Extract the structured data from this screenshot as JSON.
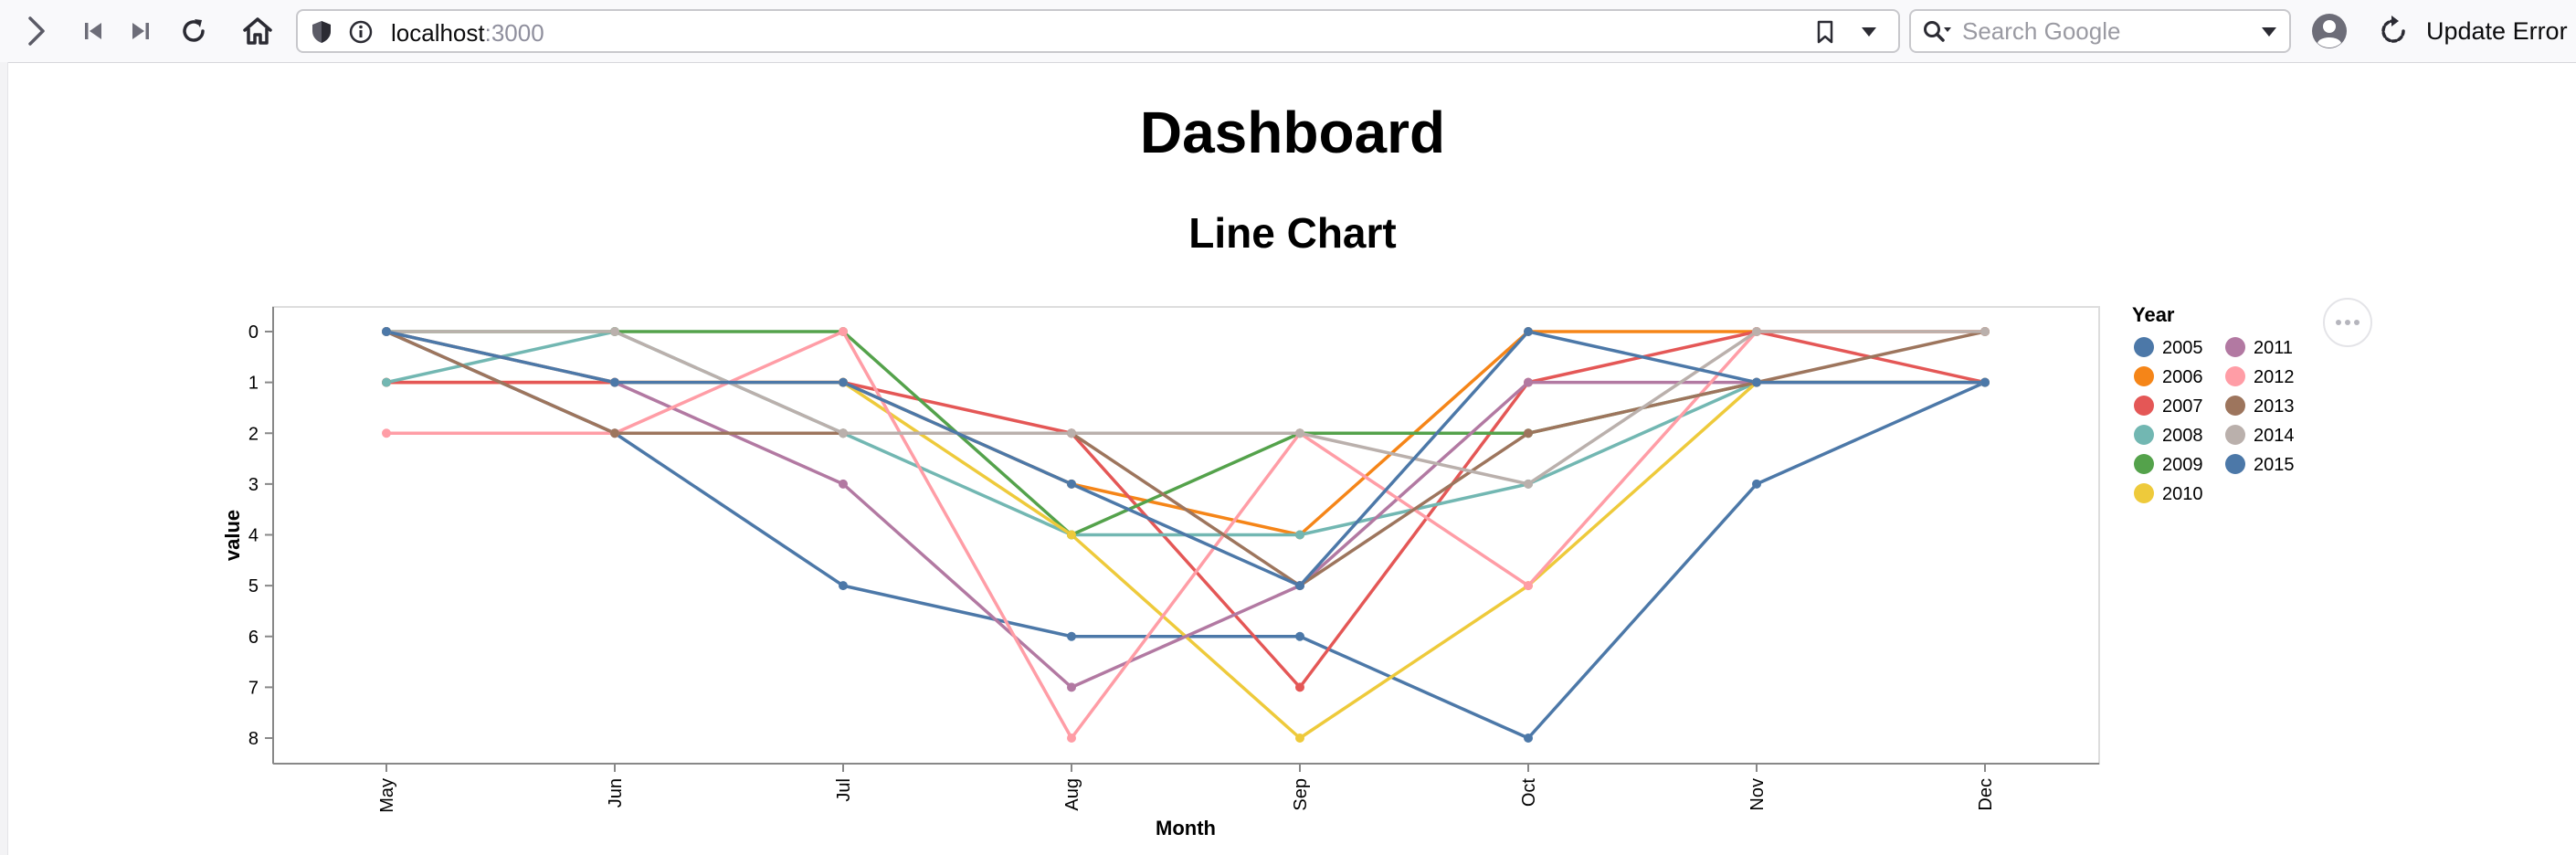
{
  "browser": {
    "url_host": "localhost",
    "url_port": ":3000",
    "search_placeholder": "Search Google",
    "update_label": "Update Error"
  },
  "page": {
    "title": "Dashboard",
    "chart_heading": "Line Chart"
  },
  "chart_data": {
    "type": "line",
    "title": "Line Chart",
    "xlabel": "Month",
    "ylabel": "value",
    "categories": [
      "May",
      "Jun",
      "Jul",
      "Aug",
      "Sep",
      "Oct",
      "Nov",
      "Dec"
    ],
    "ylim": [
      0,
      8
    ],
    "y_reversed": true,
    "yticks": [
      0,
      1,
      2,
      3,
      4,
      5,
      6,
      7,
      8
    ],
    "grid": false,
    "legend": {
      "title": "Year",
      "placement": "right"
    },
    "series": [
      {
        "name": "2005",
        "color": "#4c78a8",
        "values": [
          0,
          2,
          5,
          6,
          6,
          8,
          3,
          1
        ]
      },
      {
        "name": "2006",
        "color": "#f58518",
        "values": [
          1,
          1,
          1,
          3,
          4,
          0,
          0,
          0
        ]
      },
      {
        "name": "2007",
        "color": "#e45756",
        "values": [
          1,
          1,
          1,
          2,
          7,
          1,
          0,
          1
        ]
      },
      {
        "name": "2008",
        "color": "#72b7b2",
        "values": [
          1,
          0,
          2,
          4,
          4,
          3,
          1,
          1
        ]
      },
      {
        "name": "2009",
        "color": "#54a24b",
        "values": [
          0,
          0,
          0,
          4,
          2,
          2,
          1,
          1
        ]
      },
      {
        "name": "2010",
        "color": "#eeca3b",
        "values": [
          0,
          1,
          1,
          4,
          8,
          5,
          1,
          1
        ]
      },
      {
        "name": "2011",
        "color": "#b279a2",
        "values": [
          0,
          1,
          3,
          7,
          5,
          1,
          1,
          1
        ]
      },
      {
        "name": "2012",
        "color": "#ff9da6",
        "values": [
          2,
          2,
          0,
          8,
          2,
          5,
          0,
          0
        ]
      },
      {
        "name": "2013",
        "color": "#9d755d",
        "values": [
          0,
          2,
          2,
          2,
          5,
          2,
          1,
          0
        ]
      },
      {
        "name": "2014",
        "color": "#bab0ac",
        "values": [
          0,
          0,
          2,
          2,
          2,
          3,
          0,
          0
        ]
      },
      {
        "name": "2015",
        "color": "#4c78a8",
        "values": [
          0,
          1,
          1,
          3,
          5,
          0,
          1,
          1
        ]
      }
    ]
  }
}
